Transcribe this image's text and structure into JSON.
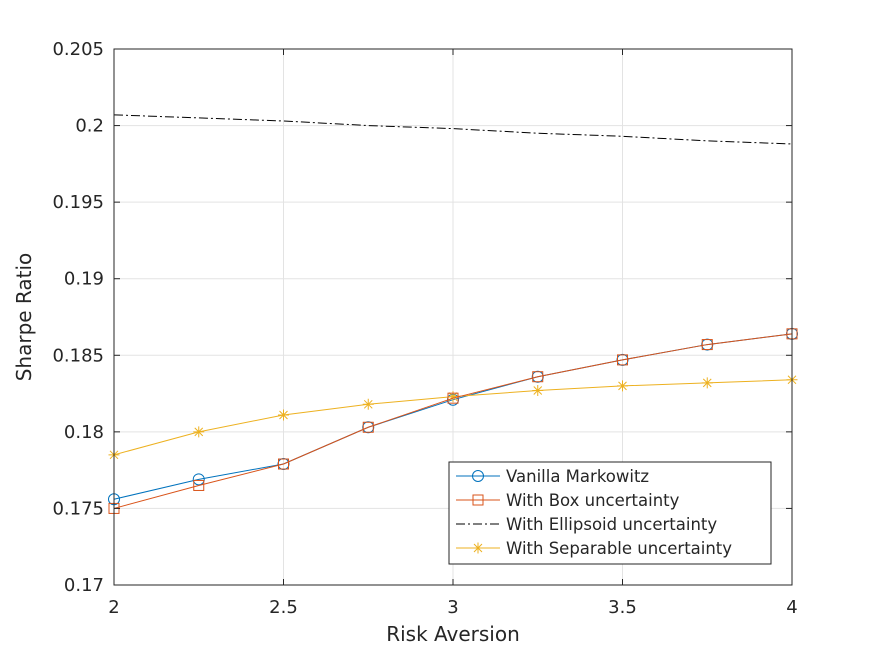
{
  "chart_data": {
    "type": "line",
    "title": "",
    "xlabel": "Risk Aversion",
    "ylabel": "Sharpe Ratio",
    "xlim": [
      2,
      4
    ],
    "ylim": [
      0.17,
      0.205
    ],
    "xticks": [
      2,
      2.5,
      3,
      3.5,
      4
    ],
    "xtick_labels": [
      "2",
      "2.5",
      "3",
      "3.5",
      "4"
    ],
    "yticks": [
      0.17,
      0.175,
      0.18,
      0.185,
      0.19,
      0.195,
      0.2,
      0.205
    ],
    "ytick_labels": [
      "0.17",
      "0.175",
      "0.18",
      "0.185",
      "0.19",
      "0.195",
      "0.2",
      "0.205"
    ],
    "grid": true,
    "legend_position": "bottom-right",
    "x": [
      2,
      2.25,
      2.5,
      2.75,
      3,
      3.25,
      3.5,
      3.75,
      4
    ],
    "series": [
      {
        "name": "Vanilla Markowitz",
        "color": "#0072BD",
        "marker": "circle",
        "line_style": "solid",
        "values": [
          0.1756,
          0.1769,
          0.1779,
          0.1803,
          0.1821,
          0.1836,
          0.1847,
          0.1857,
          0.1864
        ]
      },
      {
        "name": "With Box uncertainty",
        "color": "#D95319",
        "marker": "square",
        "line_style": "solid",
        "values": [
          0.175,
          0.1765,
          0.1779,
          0.1803,
          0.1822,
          0.1836,
          0.1847,
          0.1857,
          0.1864
        ]
      },
      {
        "name": "With Ellipsoid uncertainty",
        "color": "#000000",
        "marker": "none",
        "line_style": "dash-dot",
        "values": [
          0.2007,
          0.2005,
          0.2003,
          0.2,
          0.1998,
          0.1995,
          0.1993,
          0.199,
          0.1988
        ]
      },
      {
        "name": "With Separable uncertainty",
        "color": "#EDB120",
        "marker": "asterisk",
        "line_style": "solid",
        "values": [
          0.1785,
          0.18,
          0.1811,
          0.1818,
          0.1823,
          0.1827,
          0.183,
          0.1832,
          0.1834
        ]
      }
    ]
  }
}
